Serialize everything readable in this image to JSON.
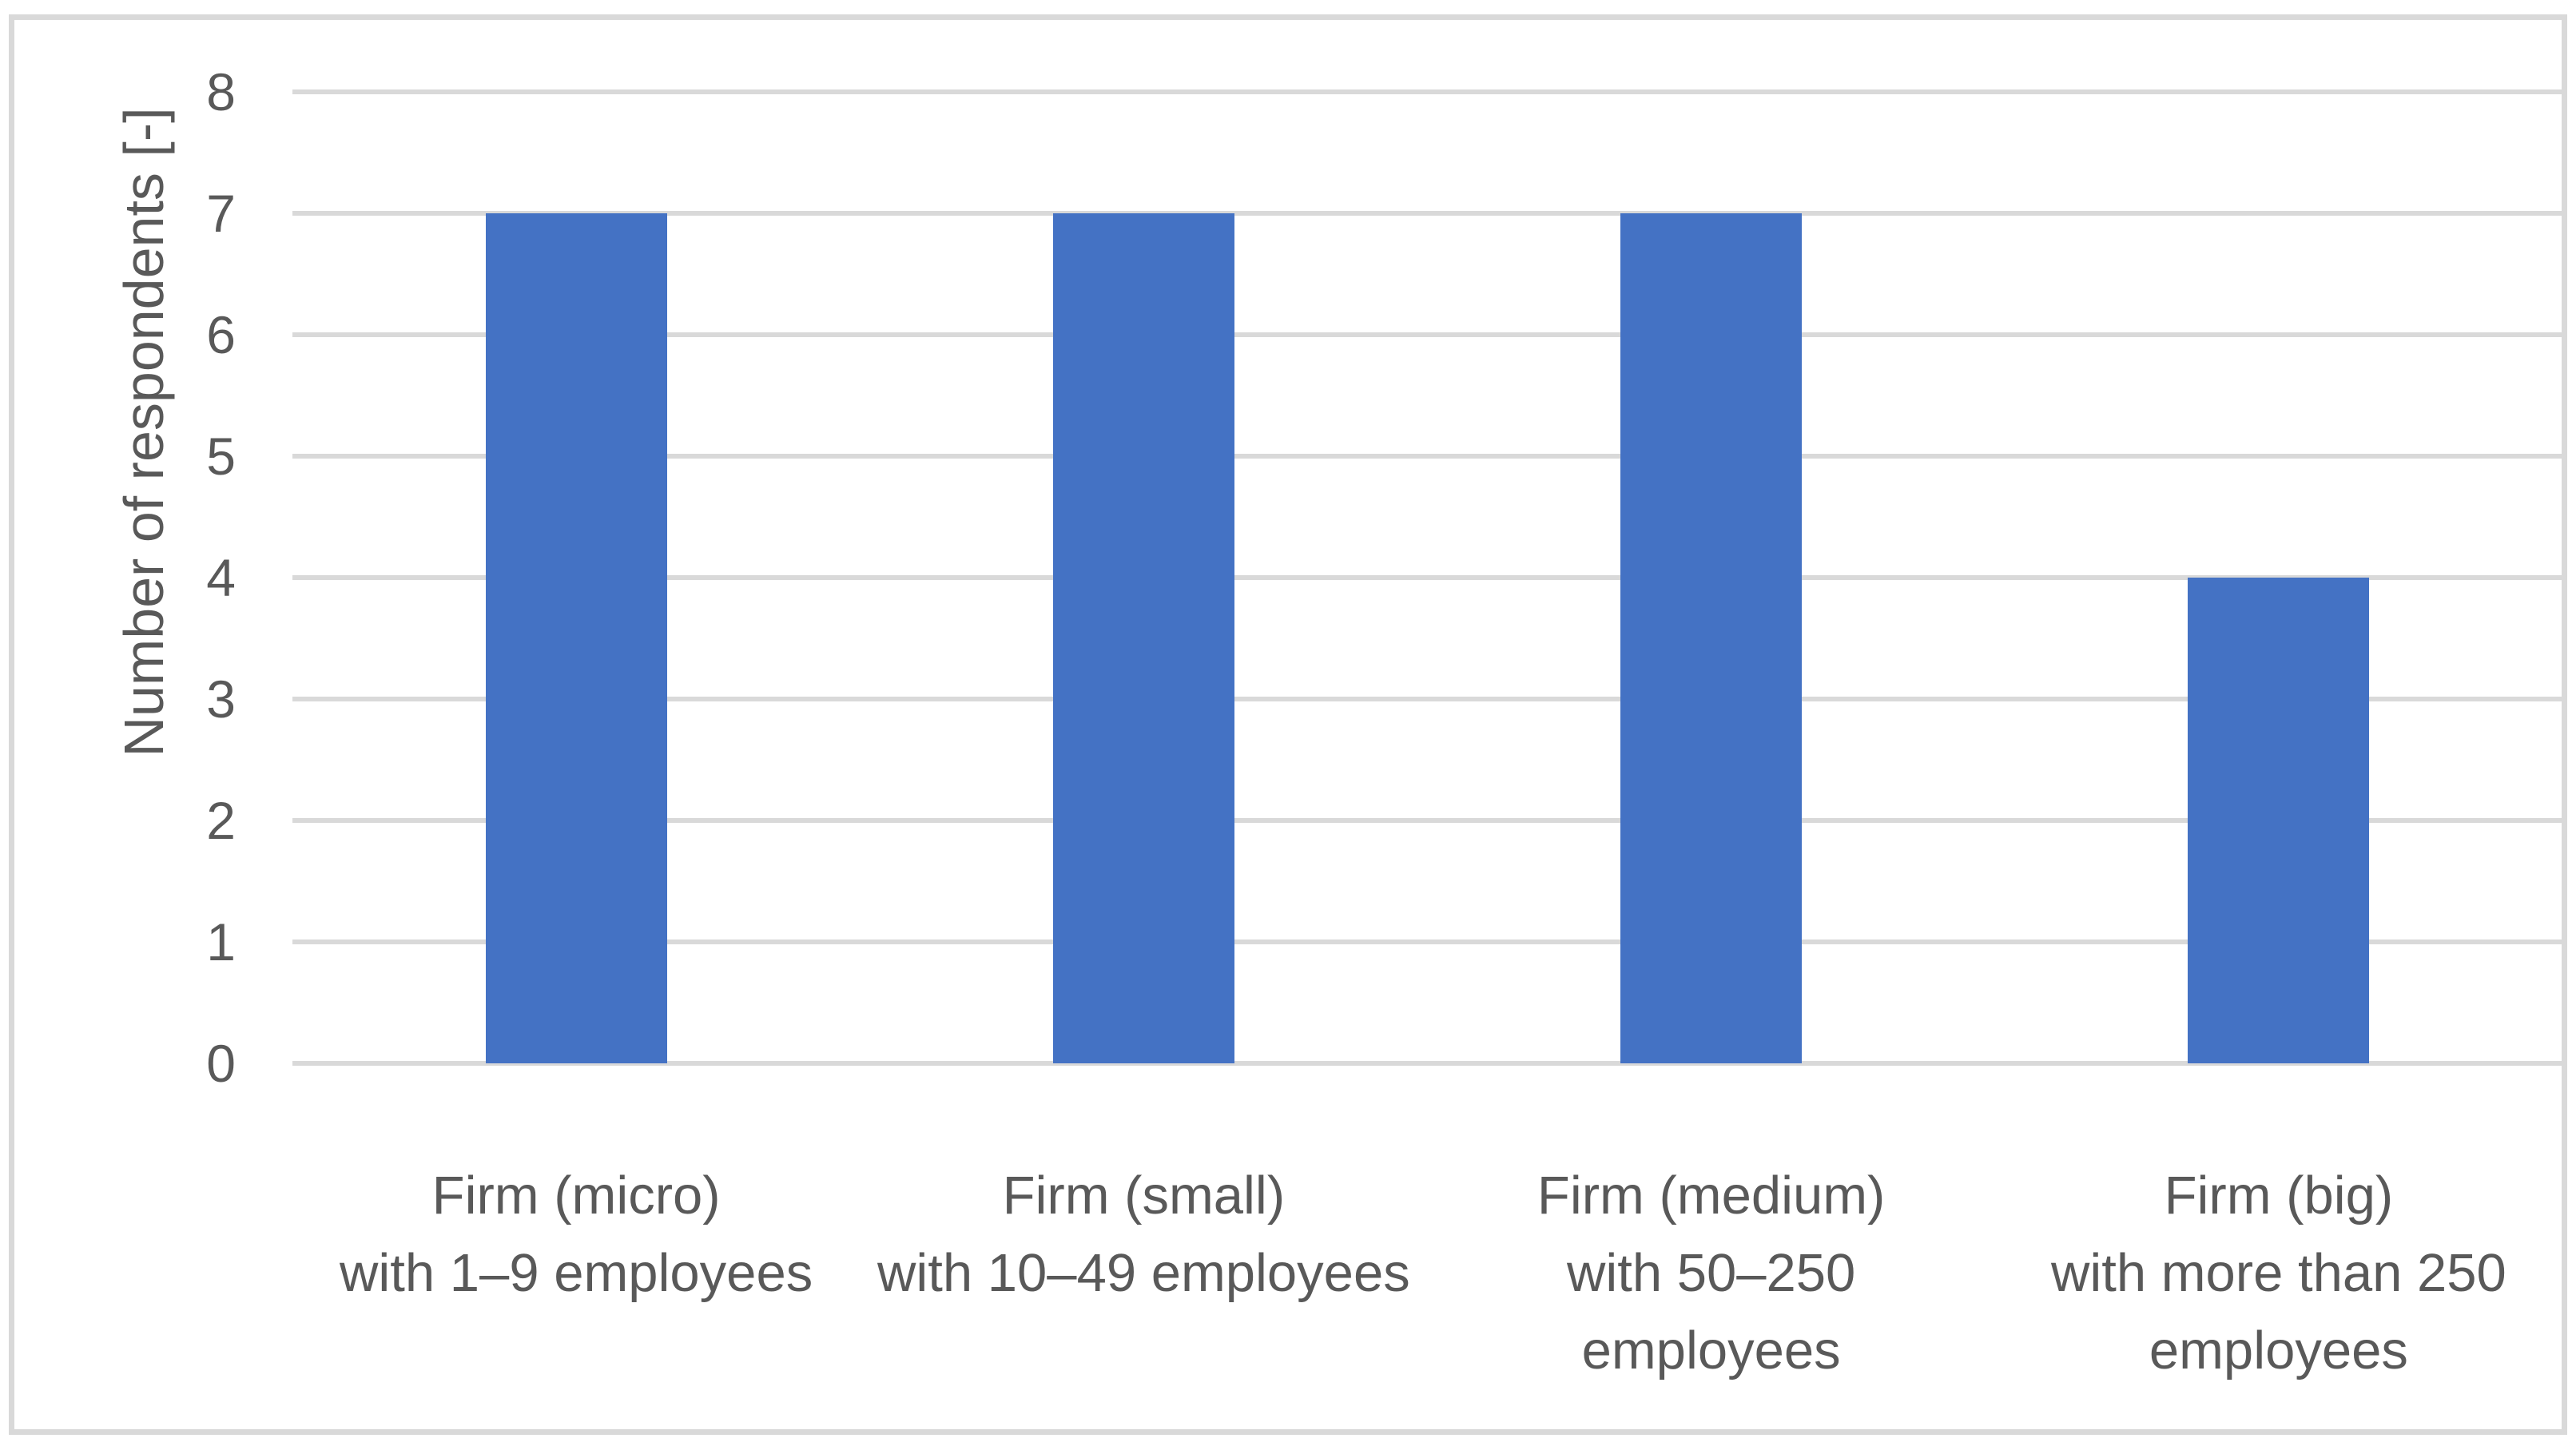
{
  "chart_data": {
    "type": "bar",
    "title": "",
    "xlabel": "",
    "ylabel": "Number of respondents [-]",
    "categories": [
      "Firm (micro)\nwith 1–9 employees",
      "Firm (small)\nwith 10–49 employees",
      "Firm (medium)\nwith 50–250\nemployees",
      "Firm (big)\nwith more than 250\nemployees"
    ],
    "category_keys": [
      "micro",
      "small",
      "medium",
      "big"
    ],
    "values": [
      7,
      7,
      7,
      4
    ],
    "ylim": [
      0,
      8
    ],
    "yticks": [
      0,
      1,
      2,
      3,
      4,
      5,
      6,
      7,
      8
    ],
    "grid": true,
    "legend": "none",
    "bar_color": "#4472C4",
    "text_color": "#595959",
    "gridline_color": "#D9D9D9",
    "frame_color": "#D9D9D9"
  }
}
